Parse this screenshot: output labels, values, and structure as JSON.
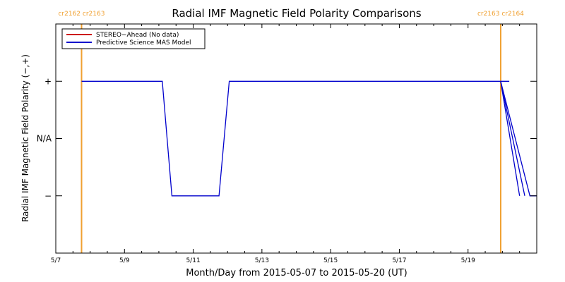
{
  "chart_data": {
    "type": "line",
    "title": "Radial IMF Magnetic Field Polarity Comparisons",
    "xlabel": "Month/Day from 2015-05-07 to 2015-05-20 (UT)",
    "ylabel": "Radial IMF Magnetic Field Polarity (−,+)",
    "x_range_days": [
      0,
      14
    ],
    "x_ticks": [
      {
        "label": "5/7",
        "day": 0
      },
      {
        "label": "5/9",
        "day": 2
      },
      {
        "label": "5/11",
        "day": 4
      },
      {
        "label": "5/13",
        "day": 6
      },
      {
        "label": "5/15",
        "day": 8
      },
      {
        "label": "5/17",
        "day": 10
      },
      {
        "label": "5/19",
        "day": 12
      }
    ],
    "y_range": [
      -2,
      2
    ],
    "y_ticks": [
      {
        "label": "+",
        "value": 1
      },
      {
        "label": "N/A",
        "value": 0
      },
      {
        "label": "−",
        "value": -1
      }
    ],
    "legend_position": "top-left",
    "legend": [
      {
        "label": "STEREO−Ahead (No data)",
        "color": "#cc0000"
      },
      {
        "label": "Predictive Science MAS Model",
        "color": "#0000cc"
      }
    ],
    "carrington_markers": [
      {
        "label": "cr2162 cr2163",
        "day": 0.75,
        "color": "#f0a030"
      },
      {
        "label": "cr2163 cr2164",
        "day": 12.95,
        "color": "#f0a030"
      }
    ],
    "series": [
      {
        "color": "#0000cc",
        "points": [
          [
            0.75,
            1
          ],
          [
            3.1,
            1
          ],
          [
            3.38,
            -1
          ],
          [
            4.75,
            -1
          ],
          [
            5.05,
            1
          ],
          [
            12.95,
            1
          ],
          [
            13.2,
            1
          ]
        ]
      },
      {
        "color": "#0000cc",
        "points": [
          [
            12.95,
            1
          ],
          [
            13.5,
            -1
          ]
        ]
      },
      {
        "color": "#0000cc",
        "points": [
          [
            12.95,
            1
          ],
          [
            13.65,
            -1
          ]
        ]
      },
      {
        "color": "#0000cc",
        "points": [
          [
            12.95,
            1
          ],
          [
            13.8,
            -1
          ],
          [
            14,
            -1
          ]
        ]
      }
    ]
  }
}
